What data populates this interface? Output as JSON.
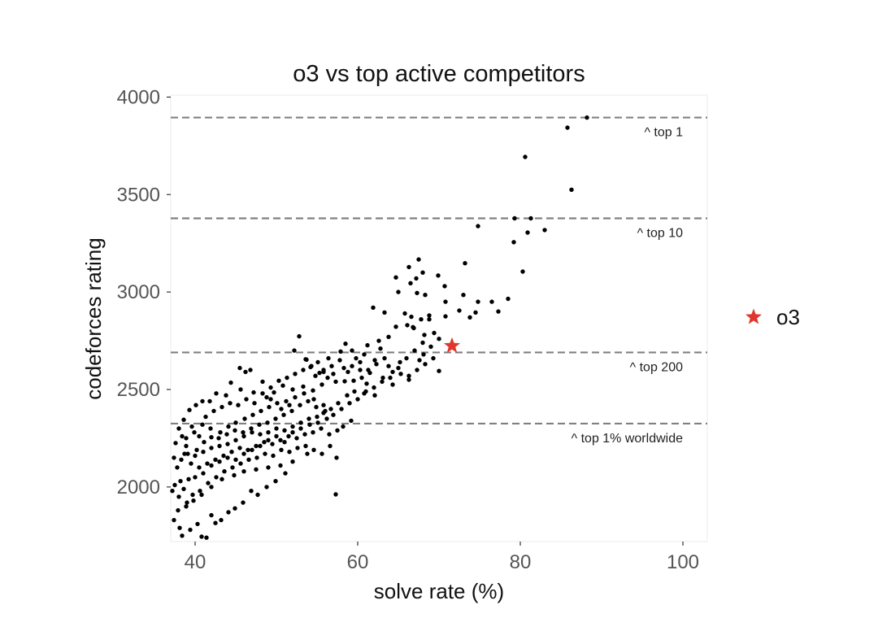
{
  "chart_data": {
    "type": "scatter",
    "title": "o3 vs top active competitors",
    "xlabel": "solve rate (%)",
    "ylabel": "codeforces rating",
    "xlim": [
      37,
      103
    ],
    "ylim": [
      1720,
      4010
    ],
    "x_ticks": [
      40,
      60,
      80,
      100
    ],
    "y_ticks": [
      2000,
      2500,
      3000,
      3500,
      4000
    ],
    "grid": false,
    "legend_position": "right",
    "colors": {
      "points": "#000000",
      "highlight": "#e0362c",
      "ref_line": "#808080",
      "frame": "#ebebeb"
    },
    "reference_lines": [
      {
        "y": 3895,
        "label": "^ top 1"
      },
      {
        "y": 3378,
        "label": "^ top 10"
      },
      {
        "y": 2690,
        "label": "^ top 200"
      },
      {
        "y": 2325,
        "label": "^ top 1% worldwide"
      }
    ],
    "highlight": {
      "name": "o3",
      "x": 71.6,
      "y": 2724
    },
    "series": [
      {
        "points": [
          [
            88.2,
            3895
          ],
          [
            85.8,
            3843
          ],
          [
            80.6,
            3693
          ],
          [
            86.3,
            3525
          ],
          [
            81.3,
            3378
          ],
          [
            79.3,
            3378
          ],
          [
            80.9,
            3305
          ],
          [
            83.0,
            3318
          ],
          [
            79.2,
            3256
          ],
          [
            74.8,
            3338
          ],
          [
            80.3,
            3105
          ],
          [
            73.2,
            3148
          ],
          [
            67.5,
            3167
          ],
          [
            66.3,
            3128
          ],
          [
            68.0,
            3100
          ],
          [
            64.7,
            3075
          ],
          [
            67.2,
            3070
          ],
          [
            69.9,
            3085
          ],
          [
            73.0,
            2985
          ],
          [
            70.7,
            3030
          ],
          [
            66.5,
            3045
          ],
          [
            65.0,
            3000
          ],
          [
            67.3,
            2995
          ],
          [
            68.3,
            2985
          ],
          [
            70.8,
            2950
          ],
          [
            74.8,
            2950
          ],
          [
            76.5,
            2950
          ],
          [
            78.5,
            2965
          ],
          [
            77.3,
            2900
          ],
          [
            74.5,
            2895
          ],
          [
            73.8,
            2870
          ],
          [
            70.8,
            2875
          ],
          [
            72.5,
            2905
          ],
          [
            61.9,
            2920
          ],
          [
            63.3,
            2895
          ],
          [
            65.8,
            2890
          ],
          [
            66.6,
            2873
          ],
          [
            68.8,
            2880
          ],
          [
            67.8,
            2860
          ],
          [
            66.1,
            2830
          ],
          [
            69.4,
            2790
          ],
          [
            68.2,
            2780
          ],
          [
            66.9,
            2815
          ],
          [
            64.7,
            2822
          ],
          [
            63.8,
            2770
          ],
          [
            62.6,
            2750
          ],
          [
            61.2,
            2727
          ],
          [
            58.5,
            2735
          ],
          [
            59.3,
            2700
          ],
          [
            57.9,
            2695
          ],
          [
            56.4,
            2660
          ],
          [
            55.1,
            2640
          ],
          [
            53.7,
            2653
          ],
          [
            52.2,
            2700
          ],
          [
            52.8,
            2773
          ],
          [
            53.6,
            2655
          ],
          [
            55.8,
            2590
          ],
          [
            54.2,
            2615
          ],
          [
            57.0,
            2580
          ],
          [
            58.8,
            2590
          ],
          [
            60.3,
            2600
          ],
          [
            61.5,
            2585
          ],
          [
            63.1,
            2560
          ],
          [
            64.3,
            2525
          ],
          [
            66.3,
            2550
          ],
          [
            68.1,
            2680
          ],
          [
            67.6,
            2650
          ],
          [
            70.0,
            2595
          ],
          [
            62.1,
            2650
          ],
          [
            63.8,
            2620
          ],
          [
            65.2,
            2640
          ],
          [
            58.4,
            2542
          ],
          [
            59.5,
            2545
          ],
          [
            60.5,
            2560
          ],
          [
            61.1,
            2530
          ],
          [
            55.6,
            2525
          ],
          [
            54.5,
            2495
          ],
          [
            53.3,
            2515
          ],
          [
            52.0,
            2500
          ],
          [
            50.8,
            2520
          ],
          [
            49.7,
            2485
          ],
          [
            48.8,
            2460
          ],
          [
            47.2,
            2485
          ],
          [
            45.6,
            2500
          ],
          [
            46.2,
            2590
          ],
          [
            45.5,
            2610
          ],
          [
            44.4,
            2535
          ],
          [
            43.8,
            2470
          ],
          [
            42.6,
            2480
          ],
          [
            41.8,
            2440
          ],
          [
            40.9,
            2440
          ],
          [
            40.1,
            2420
          ],
          [
            39.3,
            2395
          ],
          [
            38.6,
            2345
          ],
          [
            38.0,
            2300
          ],
          [
            38.4,
            2260
          ],
          [
            38.9,
            2210
          ],
          [
            37.6,
            2225
          ],
          [
            37.4,
            2150
          ],
          [
            38.3,
            2140
          ],
          [
            39.1,
            2170
          ],
          [
            40.2,
            2190
          ],
          [
            41.1,
            2230
          ],
          [
            42.0,
            2255
          ],
          [
            43.1,
            2280
          ],
          [
            44.1,
            2310
          ],
          [
            45.0,
            2330
          ],
          [
            46.1,
            2350
          ],
          [
            47.1,
            2370
          ],
          [
            48.1,
            2390
          ],
          [
            49.1,
            2410
          ],
          [
            50.1,
            2430
          ],
          [
            51.2,
            2440
          ],
          [
            52.3,
            2460
          ],
          [
            53.4,
            2480
          ],
          [
            54.6,
            2450
          ],
          [
            55.8,
            2420
          ],
          [
            56.7,
            2400
          ],
          [
            57.6,
            2430
          ],
          [
            58.7,
            2470
          ],
          [
            59.6,
            2490
          ],
          [
            60.8,
            2480
          ],
          [
            62.1,
            2470
          ],
          [
            56.2,
            2350
          ],
          [
            55.1,
            2330
          ],
          [
            54.1,
            2320
          ],
          [
            53.0,
            2300
          ],
          [
            52.0,
            2310
          ],
          [
            51.0,
            2290
          ],
          [
            50.0,
            2300
          ],
          [
            49.0,
            2280
          ],
          [
            48.0,
            2270
          ],
          [
            47.0,
            2280
          ],
          [
            46.0,
            2260
          ],
          [
            45.0,
            2240
          ],
          [
            44.0,
            2220
          ],
          [
            43.0,
            2210
          ],
          [
            42.0,
            2200
          ],
          [
            41.0,
            2180
          ],
          [
            40.0,
            2160
          ],
          [
            39.5,
            2120
          ],
          [
            40.5,
            2100
          ],
          [
            41.5,
            2120
          ],
          [
            42.5,
            2140
          ],
          [
            43.5,
            2160
          ],
          [
            44.5,
            2180
          ],
          [
            45.5,
            2200
          ],
          [
            46.5,
            2190
          ],
          [
            47.5,
            2210
          ],
          [
            48.5,
            2230
          ],
          [
            49.5,
            2220
          ],
          [
            50.5,
            2240
          ],
          [
            51.5,
            2260
          ],
          [
            52.5,
            2250
          ],
          [
            53.5,
            2270
          ],
          [
            54.5,
            2280
          ],
          [
            55.5,
            2300
          ],
          [
            56.5,
            2270
          ],
          [
            57.5,
            2290
          ],
          [
            58.2,
            2310
          ],
          [
            59.2,
            2340
          ],
          [
            39.2,
            2040
          ],
          [
            38.2,
            2030
          ],
          [
            37.5,
            2010
          ],
          [
            38.6,
            1990
          ],
          [
            39.7,
            1960
          ],
          [
            40.6,
            1980
          ],
          [
            41.6,
            2020
          ],
          [
            42.6,
            2050
          ],
          [
            43.6,
            2080
          ],
          [
            44.6,
            2100
          ],
          [
            45.6,
            2120
          ],
          [
            46.6,
            2140
          ],
          [
            47.6,
            2150
          ],
          [
            48.6,
            2170
          ],
          [
            49.6,
            2160
          ],
          [
            50.6,
            2190
          ],
          [
            51.6,
            2180
          ],
          [
            52.6,
            2200
          ],
          [
            53.6,
            2210
          ],
          [
            54.6,
            2190
          ],
          [
            55.6,
            2170
          ],
          [
            56.6,
            2210
          ],
          [
            57.4,
            2150
          ],
          [
            52.0,
            2130
          ],
          [
            50.5,
            2110
          ],
          [
            49.0,
            2100
          ],
          [
            47.5,
            2090
          ],
          [
            46.0,
            2080
          ],
          [
            44.8,
            2060
          ],
          [
            43.3,
            2040
          ],
          [
            42.0,
            2000
          ],
          [
            40.8,
            1960
          ],
          [
            39.8,
            1930
          ],
          [
            38.9,
            1900
          ],
          [
            37.9,
            1880
          ],
          [
            37.4,
            1830
          ],
          [
            38.1,
            1790
          ],
          [
            38.4,
            1750
          ],
          [
            39.4,
            1780
          ],
          [
            40.3,
            1810
          ],
          [
            40.8,
            1745
          ],
          [
            41.4,
            1740
          ],
          [
            42.0,
            1855
          ],
          [
            42.5,
            1815
          ],
          [
            43.2,
            1830
          ],
          [
            44.1,
            1870
          ],
          [
            44.9,
            1890
          ],
          [
            45.9,
            1920
          ],
          [
            46.9,
            1980
          ],
          [
            47.7,
            1960
          ],
          [
            48.8,
            2000
          ],
          [
            49.9,
            2030
          ],
          [
            51.1,
            2070
          ],
          [
            53.8,
            2170
          ],
          [
            57.3,
            1962
          ],
          [
            55.8,
            2380
          ],
          [
            54.9,
            2410
          ],
          [
            53.9,
            2440
          ],
          [
            52.9,
            2420
          ],
          [
            51.9,
            2390
          ],
          [
            50.9,
            2370
          ],
          [
            49.9,
            2350
          ],
          [
            48.9,
            2330
          ],
          [
            47.9,
            2320
          ],
          [
            46.9,
            2300
          ],
          [
            45.9,
            2280
          ],
          [
            44.9,
            2290
          ],
          [
            43.9,
            2270
          ],
          [
            42.9,
            2250
          ],
          [
            41.9,
            2300
          ],
          [
            40.9,
            2320
          ],
          [
            39.9,
            2280
          ],
          [
            38.9,
            2250
          ],
          [
            41.3,
            2360
          ],
          [
            42.3,
            2390
          ],
          [
            43.3,
            2410
          ],
          [
            44.3,
            2430
          ],
          [
            45.3,
            2420
          ],
          [
            46.3,
            2450
          ],
          [
            47.3,
            2430
          ],
          [
            48.3,
            2480
          ],
          [
            49.3,
            2510
          ],
          [
            50.3,
            2545
          ],
          [
            51.3,
            2560
          ],
          [
            52.3,
            2580
          ],
          [
            53.3,
            2600
          ],
          [
            54.3,
            2620
          ],
          [
            55.3,
            2585
          ],
          [
            56.3,
            2560
          ],
          [
            57.3,
            2540
          ],
          [
            58.3,
            2610
          ],
          [
            59.3,
            2620
          ],
          [
            60.3,
            2640
          ],
          [
            61.3,
            2600
          ],
          [
            62.3,
            2630
          ],
          [
            63.3,
            2660
          ],
          [
            64.3,
            2590
          ],
          [
            65.3,
            2580
          ],
          [
            66.3,
            2570
          ],
          [
            67.3,
            2600
          ],
          [
            68.3,
            2630
          ],
          [
            69.3,
            2660
          ],
          [
            62.8,
            2710
          ],
          [
            60.8,
            2680
          ],
          [
            59.8,
            2660
          ],
          [
            57.8,
            2650
          ],
          [
            56.8,
            2620
          ],
          [
            55.8,
            2600
          ],
          [
            54.8,
            2570
          ],
          [
            46.8,
            2600
          ],
          [
            48.3,
            2540
          ],
          [
            49.3,
            2450
          ],
          [
            50.6,
            2400
          ],
          [
            51.6,
            2420
          ],
          [
            40.5,
            2260
          ],
          [
            39.6,
            2310
          ],
          [
            38.7,
            2170
          ],
          [
            37.8,
            2100
          ],
          [
            37.2,
            1980
          ],
          [
            38.0,
            1950
          ],
          [
            39.0,
            1920
          ],
          [
            40.0,
            2050
          ],
          [
            41.0,
            2070
          ],
          [
            42.0,
            2110
          ],
          [
            43.0,
            2130
          ],
          [
            44.0,
            2150
          ],
          [
            45.0,
            2140
          ],
          [
            46.0,
            2170
          ],
          [
            47.0,
            2190
          ],
          [
            48.0,
            2210
          ],
          [
            49.0,
            2240
          ],
          [
            50.0,
            2260
          ],
          [
            51.0,
            2230
          ],
          [
            52.0,
            2280
          ],
          [
            53.0,
            2330
          ],
          [
            54.0,
            2350
          ],
          [
            55.0,
            2360
          ],
          [
            56.0,
            2390
          ],
          [
            57.0,
            2370
          ],
          [
            58.0,
            2400
          ],
          [
            59.0,
            2430
          ],
          [
            60.0,
            2450
          ],
          [
            61.0,
            2490
          ],
          [
            62.0,
            2510
          ],
          [
            63.0,
            2540
          ],
          [
            64.0,
            2560
          ],
          [
            65.0,
            2610
          ],
          [
            66.0,
            2660
          ],
          [
            67.0,
            2700
          ],
          [
            68.0,
            2740
          ],
          [
            69.0,
            2720
          ],
          [
            70.0,
            2760
          ],
          [
            66.8,
            2820
          ],
          [
            68.8,
            2860
          ]
        ]
      }
    ]
  }
}
